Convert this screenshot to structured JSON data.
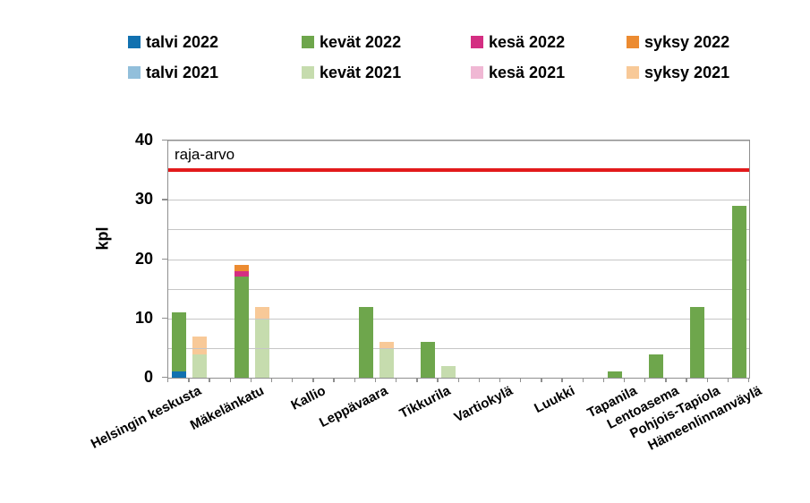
{
  "chart_data": {
    "type": "bar",
    "subtype": "stacked-grouped",
    "title": "",
    "xlabel": "",
    "ylabel": "kpl",
    "ylim": [
      0,
      40
    ],
    "yticks": [
      0,
      10,
      20,
      30,
      40
    ],
    "gridline_interval": 5,
    "grid": "on",
    "legend_position": "top",
    "threshold": {
      "label": "raja-arvo",
      "value": 35,
      "color": "#e21a1c"
    },
    "categories": [
      "Helsingin keskusta",
      "Mäkelänkatu",
      "Kallio",
      "Leppävaara",
      "Tikkurila",
      "Vartiokylä",
      "Luukki",
      "Tapanila",
      "Lentoasema",
      "Pohjois-Tapiola",
      "Hämeenlinnanväylä"
    ],
    "series": [
      {
        "name": "talvi 2022",
        "stack": "2022",
        "color": "#1171b0",
        "values": [
          1,
          0,
          0,
          0,
          0,
          0,
          0,
          0,
          0,
          0,
          0
        ]
      },
      {
        "name": "kevät 2022",
        "stack": "2022",
        "color": "#6ea64c",
        "values": [
          10,
          17,
          0,
          12,
          6,
          0,
          0,
          1,
          4,
          12,
          29
        ]
      },
      {
        "name": "kesä 2022",
        "stack": "2022",
        "color": "#d42e82",
        "values": [
          0,
          1,
          0,
          0,
          0,
          0,
          0,
          0,
          0,
          0,
          0
        ]
      },
      {
        "name": "syksy 2022",
        "stack": "2022",
        "color": "#ec8b31",
        "values": [
          0,
          1,
          0,
          0,
          0,
          0,
          0,
          0,
          0,
          0,
          0
        ]
      },
      {
        "name": "talvi 2021",
        "stack": "2021",
        "color": "#92bfdb",
        "values": [
          0,
          0,
          0,
          0,
          0,
          0,
          0,
          0,
          0,
          0,
          0
        ]
      },
      {
        "name": "kevät 2021",
        "stack": "2021",
        "color": "#c6dcae",
        "values": [
          4,
          10,
          0,
          5,
          2,
          0,
          0,
          0,
          0,
          0,
          0
        ]
      },
      {
        "name": "kesä 2021",
        "stack": "2021",
        "color": "#f0b8d4",
        "values": [
          0,
          0,
          0,
          0,
          0,
          0,
          0,
          0,
          0,
          0,
          0
        ]
      },
      {
        "name": "syksy 2021",
        "stack": "2021",
        "color": "#f8c998",
        "values": [
          3,
          2,
          0,
          1,
          0,
          0,
          0,
          0,
          0,
          0,
          0
        ]
      }
    ],
    "stack_totals": {
      "2022": [
        11,
        19,
        0,
        12,
        6,
        0,
        0,
        1,
        4,
        12,
        29
      ],
      "2021": [
        7,
        12,
        0,
        6,
        2,
        0,
        0,
        0,
        0,
        0,
        0
      ]
    }
  },
  "colors": {
    "grid": "#c6c6c6",
    "axis": "#8f8f8f",
    "background": "#ffffff",
    "text": "#000000"
  }
}
